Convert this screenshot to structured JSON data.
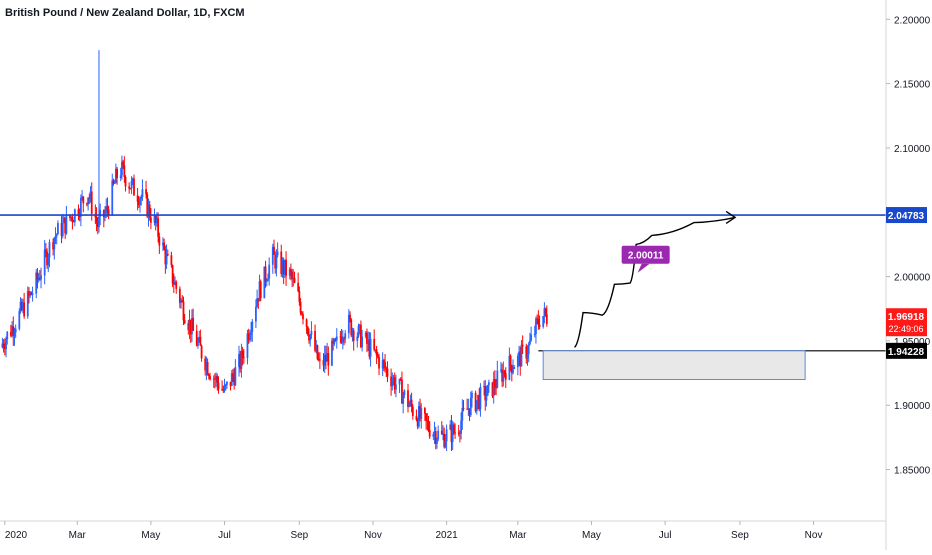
{
  "header": {
    "title": "British Pound / New Zealand Dollar, 1D, FXCM"
  },
  "colors": {
    "up_candle": "#2962ff",
    "down_candle": "#ff0000",
    "resistance_line": "#1848cc",
    "support_line": "#000000",
    "projection_box_fill": "#e8e8e8",
    "projection_box_stroke": "#5b8be0",
    "target_label_bg": "#9c27b0",
    "price_label_bg": "#ff1a1a",
    "axis_text": "#131722",
    "grid": "#e0e3eb"
  },
  "chart_data": {
    "type": "candlestick",
    "title": "British Pound / New Zealand Dollar, 1D, FXCM",
    "y_axis": {
      "ticks": [
        "2.20000",
        "2.15000",
        "2.10000",
        "2.00000",
        "1.95000",
        "1.90000",
        "1.85000"
      ],
      "tick_values": [
        2.2,
        2.15,
        2.1,
        2.0,
        1.95,
        1.9,
        1.85
      ],
      "ylim": [
        1.81,
        2.215
      ]
    },
    "x_axis": {
      "ticks": [
        "2020",
        "Mar",
        "May",
        "Jul",
        "Sep",
        "Nov",
        "2021",
        "Mar",
        "May",
        "Jul",
        "Sep",
        "Nov"
      ],
      "tick_dates": [
        "2020-01-01",
        "2020-03-01",
        "2020-05-01",
        "2020-07-01",
        "2020-09-01",
        "2020-11-01",
        "2021-01-01",
        "2021-03-01",
        "2021-05-01",
        "2021-07-01",
        "2021-09-01",
        "2021-11-01"
      ],
      "xlim": [
        "2019-12-28",
        "2021-12-31"
      ]
    },
    "price_path": {
      "dates": [
        "2019-12-28",
        "2020-01-10",
        "2020-01-25",
        "2020-02-10",
        "2020-02-28",
        "2020-03-10",
        "2020-03-18",
        "2020-03-25",
        "2020-04-05",
        "2020-04-15",
        "2020-04-25",
        "2020-05-05",
        "2020-05-15",
        "2020-05-28",
        "2020-06-10",
        "2020-06-20",
        "2020-07-01",
        "2020-07-15",
        "2020-07-28",
        "2020-08-10",
        "2020-08-25",
        "2020-09-05",
        "2020-09-18",
        "2020-10-01",
        "2020-10-10",
        "2020-10-25",
        "2020-11-10",
        "2020-11-25",
        "2020-12-05",
        "2020-12-15",
        "2020-12-28",
        "2021-01-08",
        "2021-01-20",
        "2021-02-05",
        "2021-02-20",
        "2021-03-01",
        "2021-03-10",
        "2021-03-20",
        "2021-03-25"
      ],
      "values": [
        1.945,
        1.965,
        1.99,
        2.03,
        2.05,
        2.065,
        2.04,
        2.05,
        2.085,
        2.07,
        2.06,
        2.04,
        2.01,
        1.975,
        1.945,
        1.925,
        1.91,
        1.935,
        1.985,
        2.015,
        2.0,
        1.97,
        1.93,
        1.945,
        1.965,
        1.95,
        1.93,
        1.91,
        1.895,
        1.885,
        1.875,
        1.88,
        1.9,
        1.91,
        1.93,
        1.935,
        1.945,
        1.97,
        1.969
      ]
    },
    "annotations": {
      "resistance_level": 2.04783,
      "support_level": 1.94228,
      "target_value": "2.00011",
      "projection_box": {
        "start": "2021-03-22",
        "end": "2021-10-25",
        "top": 1.94228,
        "bottom": 1.92
      },
      "projection_path": [
        [
          "2021-04-17",
          1.945
        ],
        [
          "2021-04-24",
          1.972
        ],
        [
          "2021-05-10",
          1.97
        ],
        [
          "2021-05-20",
          1.994
        ],
        [
          "2021-06-02",
          1.995
        ],
        [
          "2021-06-07",
          2.025
        ],
        [
          "2021-06-20",
          2.032
        ],
        [
          "2021-07-25",
          2.042
        ],
        [
          "2021-08-28",
          2.046
        ]
      ]
    },
    "price_labels": {
      "resistance": "2.04783",
      "support": "1.94228",
      "current_price": "1.96918",
      "countdown": "22:49:06"
    }
  }
}
